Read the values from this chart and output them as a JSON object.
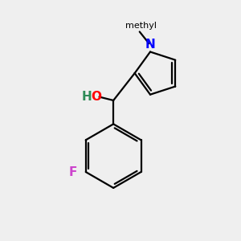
{
  "background_color": "#efefef",
  "bond_color": "#000000",
  "bond_width": 1.6,
  "atom_colors": {
    "O": "#ff0000",
    "H": "#2e8b57",
    "N": "#0000ff",
    "F": "#cc44cc",
    "C": "#000000"
  },
  "font_size_atoms": 11,
  "font_size_methyl": 10,
  "font_size_H": 11
}
